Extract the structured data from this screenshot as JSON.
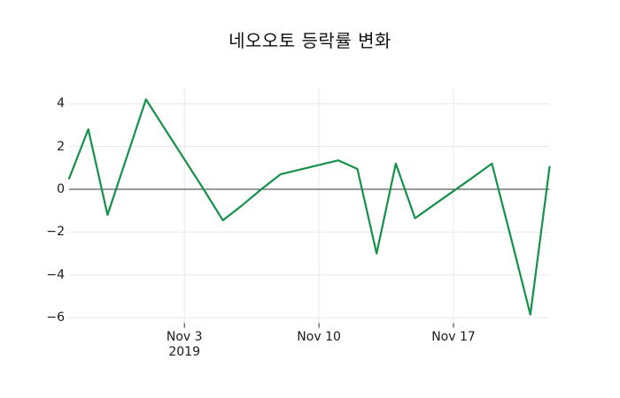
{
  "title": "네오오토 등락률 변화",
  "colors": {
    "line": "#149149",
    "grid": "#e8e8e8",
    "zero_line": "#333333",
    "tick": "#333333",
    "text": "#1a1a1a",
    "background": "#ffffff"
  },
  "chart_data": {
    "type": "line",
    "title": "네오오토 등락률 변화",
    "xlabel": "",
    "ylabel": "",
    "legend": "none",
    "grid": true,
    "zero_line": true,
    "ylim": [
      -6.25,
      4.7
    ],
    "xlim": [
      "2019-10-28",
      "2019-11-22"
    ],
    "yticks": [
      4,
      2,
      0,
      -2,
      -4,
      -6
    ],
    "ytick_labels": [
      "4",
      "2",
      "0",
      "−2",
      "−4",
      "−6"
    ],
    "xticks": [
      {
        "date": "2019-11-03",
        "label": "Nov 3"
      },
      {
        "date": "2019-11-10",
        "label": "Nov 10"
      },
      {
        "date": "2019-11-17",
        "label": "Nov 17"
      }
    ],
    "x_year_label": "2019",
    "series": [
      {
        "name": "등락률",
        "color": "#149149",
        "points": [
          {
            "date": "2019-10-28",
            "value": 0.5
          },
          {
            "date": "2019-10-29",
            "value": 2.8
          },
          {
            "date": "2019-10-30",
            "value": -1.2
          },
          {
            "date": "2019-10-31",
            "value": 1.5
          },
          {
            "date": "2019-11-01",
            "value": 4.2
          },
          {
            "date": "2019-11-04",
            "value": 0.0
          },
          {
            "date": "2019-11-05",
            "value": -1.45
          },
          {
            "date": "2019-11-06",
            "value": -0.75
          },
          {
            "date": "2019-11-07",
            "value": 0.0
          },
          {
            "date": "2019-11-08",
            "value": 0.7
          },
          {
            "date": "2019-11-11",
            "value": 1.35
          },
          {
            "date": "2019-11-12",
            "value": 0.95
          },
          {
            "date": "2019-11-13",
            "value": -3.0
          },
          {
            "date": "2019-11-14",
            "value": 1.2
          },
          {
            "date": "2019-11-15",
            "value": -1.35
          },
          {
            "date": "2019-11-18",
            "value": 0.55
          },
          {
            "date": "2019-11-19",
            "value": 1.2
          },
          {
            "date": "2019-11-20",
            "value": -2.3
          },
          {
            "date": "2019-11-21",
            "value": -5.85
          },
          {
            "date": "2019-11-22",
            "value": 1.05
          }
        ]
      }
    ]
  }
}
